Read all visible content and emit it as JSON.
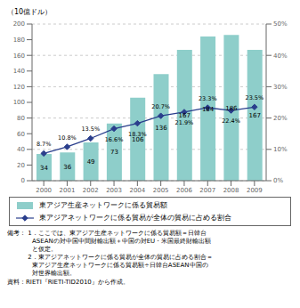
{
  "chart_data": {
    "type": "bar",
    "ylabel": "（10億ドル）",
    "categories": [
      "2000",
      "2001",
      "2002",
      "2003",
      "2004",
      "2005",
      "2006",
      "2007",
      "2008",
      "2009"
    ],
    "series": [
      {
        "name": "東アジア生産ネットワークに係る貿易額",
        "type": "bar",
        "color": "#8ececa",
        "values": [
          34,
          36,
          49,
          73,
          106,
          136,
          167,
          184,
          186,
          167
        ]
      },
      {
        "name": "東アジアネットワークに係る貿易が全体の貿易に占める割合",
        "type": "line",
        "color": "#2a3e8c",
        "marker": "diamond",
        "axis": "y2",
        "values": [
          8.7,
          10.8,
          13.5,
          16.6,
          18.3,
          20.7,
          21.9,
          23.3,
          22.4,
          23.5
        ],
        "value_labels": [
          "8.7%",
          "10.8%",
          "13.5%",
          "16.6%",
          "18.3%",
          "20.7%",
          "21.9%",
          "23.3%",
          "22.4%",
          "23.5%"
        ]
      }
    ],
    "ylim": [
      0,
      200
    ],
    "yticks": [
      0,
      20,
      40,
      60,
      80,
      100,
      120,
      140,
      160,
      180,
      200
    ],
    "y2lim": [
      0,
      50
    ],
    "y2ticks": [
      {
        "value": 0,
        "label": "0%"
      },
      {
        "value": 10,
        "label": "10%"
      },
      {
        "value": 20,
        "label": "20%"
      },
      {
        "value": 30,
        "label": "30%"
      },
      {
        "value": 40,
        "label": "40%"
      },
      {
        "value": 50,
        "label": "50%"
      }
    ],
    "grid": true,
    "data_labels": true,
    "legend": "bottom",
    "annotations": [
      "備考： 1．ここでは、東アジア生産ネットワークに係る貿易額＝日韓台\n　　　　ASEANの対中国中間財輸出額＋中国の対EU・米国最終財輸出額\n　　　　と仮定。\n　　　 2．東アジアネットワークに係る貿易が全体の貿易に占める割合＝\n　　　　東アジア生産ネットワークに係る貿易額÷日韓台ASEAN中国の\n　　　　対世界輸出額。",
      "資料：RIETI『RIETI-TID2010』から作成。"
    ]
  }
}
